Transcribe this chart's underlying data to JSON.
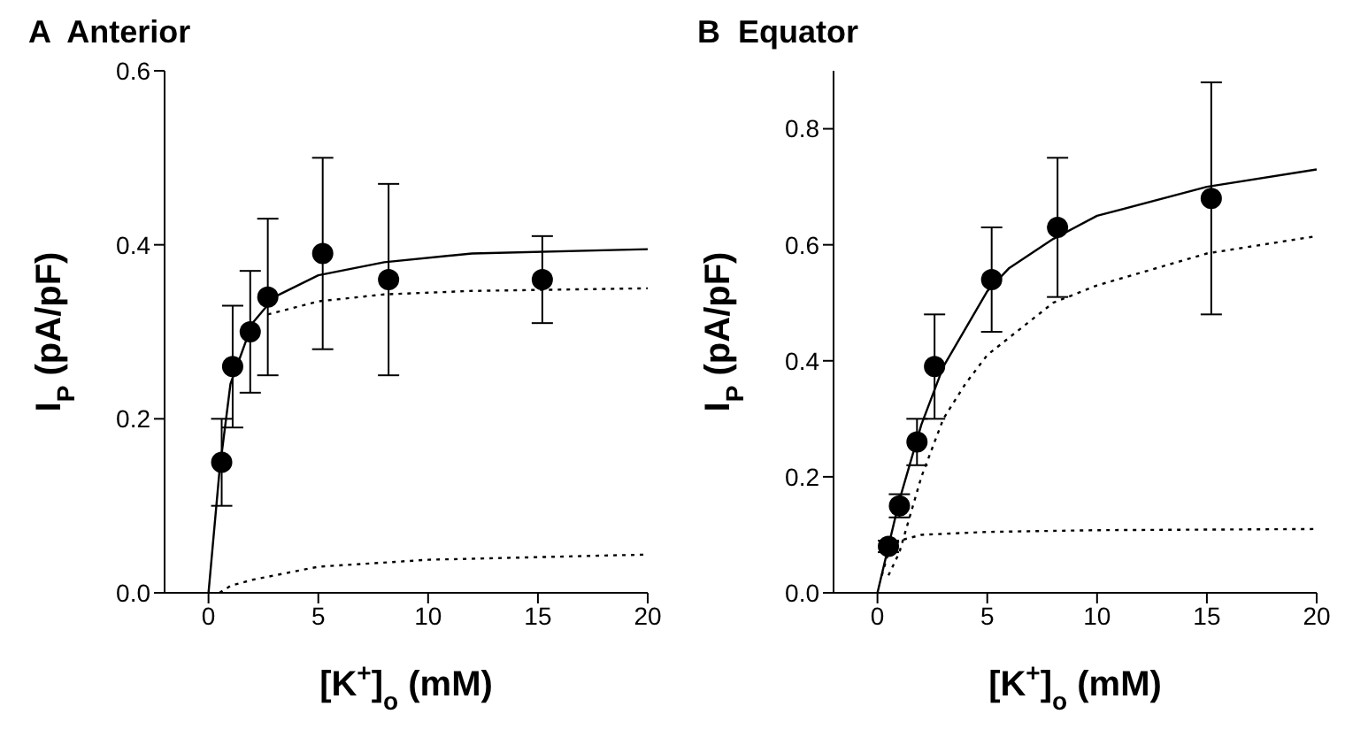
{
  "chart_data": [
    {
      "type": "scatter",
      "title": "A  Anterior",
      "xlabel": "[K$^{+}$]$_{o}$ (mM)",
      "ylabel": "I$_{P}$ (pA/pF)",
      "xlim": [
        -2,
        20
      ],
      "ylim": [
        0,
        0.6
      ],
      "xticks": [
        0,
        5,
        10,
        15,
        20
      ],
      "yticks": [
        {
          "value": 0,
          "label": "0.0"
        },
        {
          "value": 0.2,
          "label": "0.2"
        },
        {
          "value": 0.4,
          "label": "0.4"
        },
        {
          "value": 0.6,
          "label": "0.6"
        }
      ],
      "grid": false,
      "legend": false,
      "series": [
        {
          "color": "#000000",
          "marker": "circle",
          "x": [
            0.6,
            1.1,
            1.9,
            2.7,
            5.2,
            8.2,
            15.2
          ],
          "values": [
            0.15,
            0.26,
            0.3,
            0.34,
            0.39,
            0.36,
            0.36
          ],
          "errors": [
            0.05,
            0.07,
            0.07,
            0.09,
            0.11,
            0.11,
            0.05
          ]
        },
        {
          "type": "line",
          "color": "#000000",
          "line_style": "solid",
          "marker": "none",
          "x": [
            0,
            0.5,
            1,
            2,
            3,
            5,
            8,
            12,
            20
          ],
          "values": [
            0,
            0.14,
            0.24,
            0.31,
            0.34,
            0.365,
            0.38,
            0.39,
            0.395
          ]
        },
        {
          "type": "line",
          "color": "#000000",
          "line_style": "dotted",
          "marker": "none",
          "x": [
            2.7,
            5,
            8,
            12,
            20
          ],
          "values": [
            0.32,
            0.335,
            0.343,
            0.347,
            0.35
          ]
        },
        {
          "type": "line",
          "color": "#000000",
          "line_style": "dotted",
          "marker": "none",
          "x": [
            0.5,
            1,
            2,
            5,
            10,
            20
          ],
          "values": [
            0,
            0.008,
            0.015,
            0.03,
            0.038,
            0.044
          ]
        }
      ]
    },
    {
      "type": "scatter",
      "title": "B  Equator",
      "xlabel": "[K$^{+}$]$_{o}$ (mM)",
      "ylabel": "I$_{P}$ (pA/pF)",
      "xlim": [
        -2,
        20
      ],
      "ylim": [
        0,
        0.9
      ],
      "xticks": [
        0,
        5,
        10,
        15,
        20
      ],
      "yticks": [
        {
          "value": 0,
          "label": "0.0"
        },
        {
          "value": 0.2,
          "label": "0.2"
        },
        {
          "value": 0.4,
          "label": "0.4"
        },
        {
          "value": 0.6,
          "label": "0.6"
        },
        {
          "value": 0.8,
          "label": "0.8"
        }
      ],
      "grid": false,
      "legend": false,
      "series": [
        {
          "color": "#000000",
          "marker": "circle",
          "x": [
            0.5,
            1,
            1.8,
            2.6,
            5.2,
            8.2,
            15.2
          ],
          "values": [
            0.08,
            0.15,
            0.26,
            0.39,
            0.54,
            0.63,
            0.68
          ],
          "errors": [
            0.01,
            0.02,
            0.04,
            0.09,
            0.09,
            0.12,
            0.2
          ]
        },
        {
          "type": "line",
          "color": "#000000",
          "line_style": "solid",
          "marker": "none",
          "x": [
            0,
            0.5,
            1,
            2,
            3,
            5,
            6,
            8,
            10,
            15,
            20
          ],
          "values": [
            0,
            0.08,
            0.16,
            0.29,
            0.39,
            0.52,
            0.56,
            0.61,
            0.65,
            0.7,
            0.73
          ]
        },
        {
          "type": "line",
          "color": "#000000",
          "line_style": "dotted",
          "marker": "none",
          "x": [
            0.5,
            1,
            2,
            3,
            4,
            5,
            8,
            10,
            15,
            20
          ],
          "values": [
            0.03,
            0.07,
            0.2,
            0.3,
            0.36,
            0.41,
            0.5,
            0.53,
            0.585,
            0.615
          ]
        },
        {
          "type": "line",
          "color": "#000000",
          "line_style": "dotted",
          "marker": "none",
          "x": [
            0.2,
            0.5,
            1,
            2,
            5,
            10,
            20
          ],
          "values": [
            0.03,
            0.07,
            0.09,
            0.1,
            0.105,
            0.108,
            0.11
          ]
        }
      ]
    }
  ]
}
